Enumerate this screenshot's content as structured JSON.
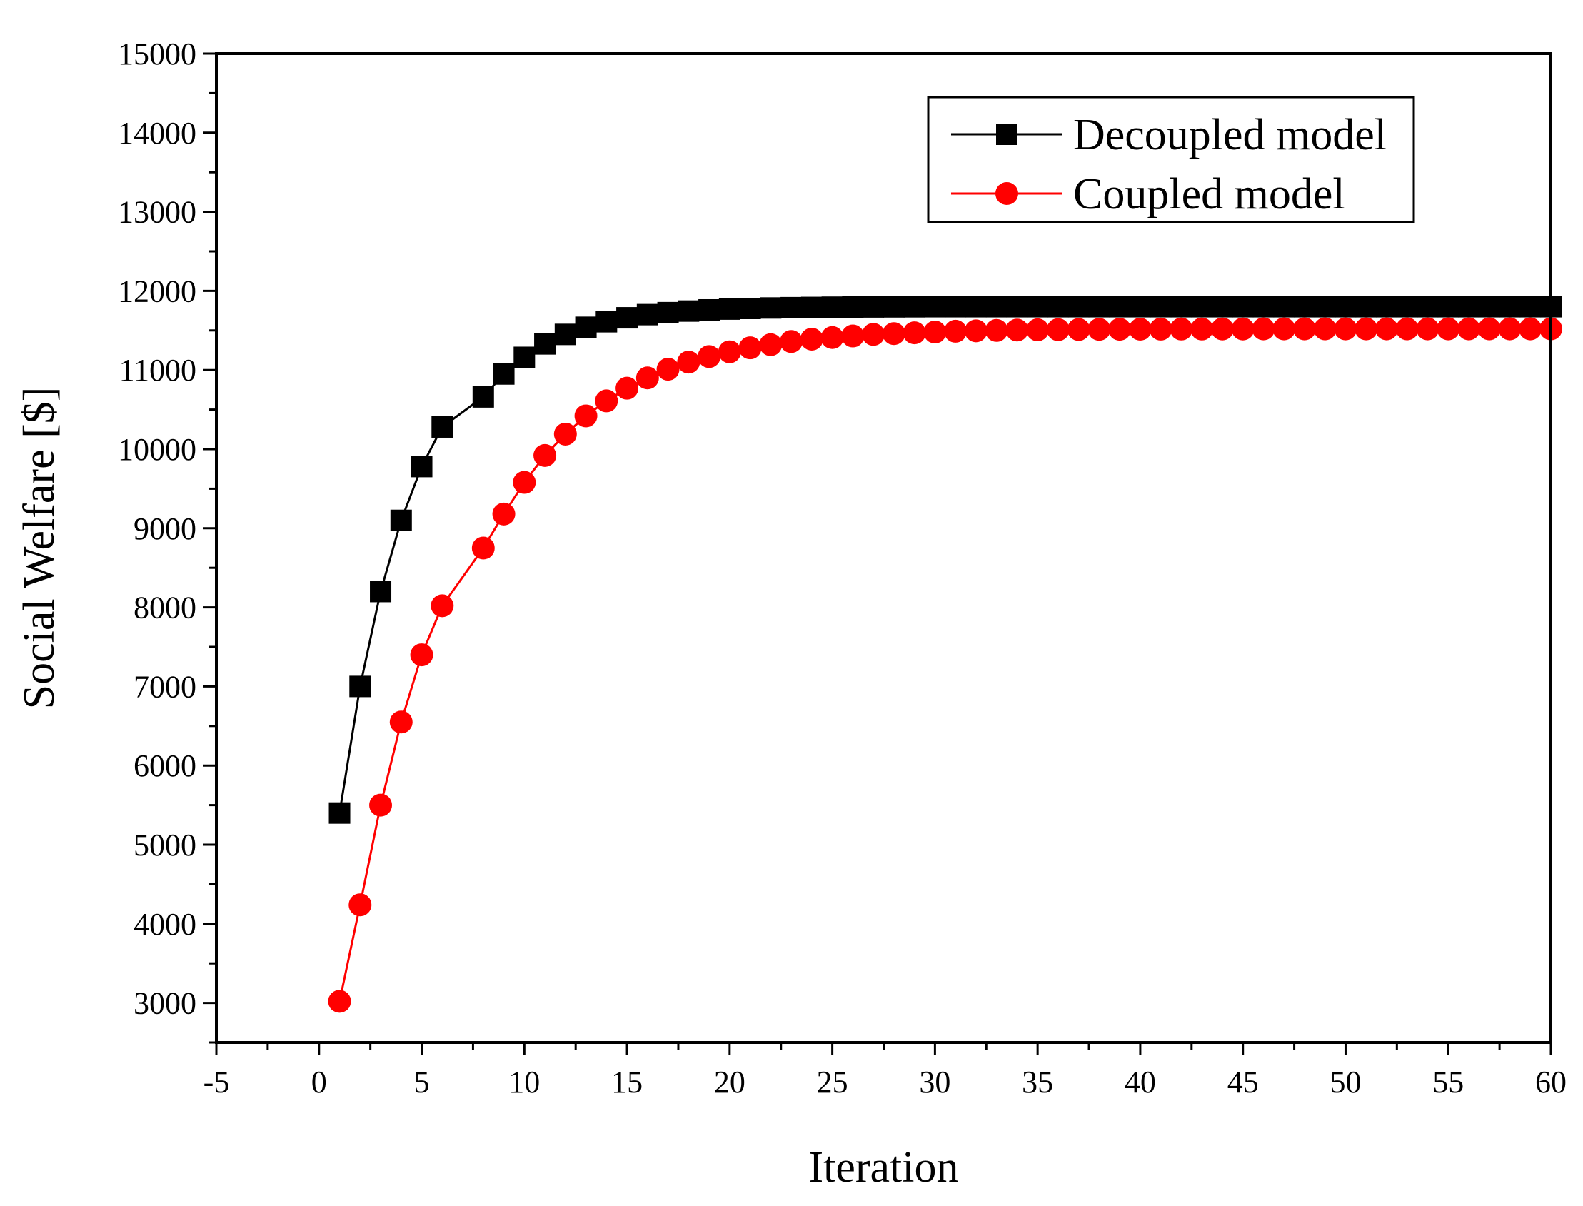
{
  "chart_data": {
    "type": "line",
    "title": "",
    "xlabel": "Iteration",
    "ylabel": "Social Welfare [$]",
    "xlim": [
      -5,
      60
    ],
    "ylim": [
      2500,
      15000
    ],
    "xticks": [
      -5,
      0,
      5,
      10,
      15,
      20,
      25,
      30,
      35,
      40,
      45,
      50,
      55,
      60
    ],
    "yticks": [
      3000,
      4000,
      5000,
      6000,
      7000,
      8000,
      9000,
      10000,
      11000,
      12000,
      13000,
      14000,
      15000
    ],
    "legend_position": "top-right",
    "series": [
      {
        "name": "Decoupled model",
        "color": "#000000",
        "marker": "square",
        "x": [
          1,
          2,
          3,
          4,
          5,
          6,
          8,
          9,
          10,
          11,
          12,
          13,
          14,
          15,
          16,
          17,
          18,
          19,
          20,
          21,
          22,
          23,
          24,
          25,
          26,
          27,
          28,
          29,
          30,
          31,
          32,
          33,
          34,
          35,
          36,
          37,
          38,
          39,
          40,
          41,
          42,
          43,
          44,
          45,
          46,
          47,
          48,
          49,
          50,
          51,
          52,
          53,
          54,
          55,
          56,
          57,
          58,
          59,
          60
        ],
        "y": [
          5400,
          7000,
          8200,
          9100,
          9780,
          10280,
          10660,
          10950,
          11160,
          11330,
          11450,
          11540,
          11610,
          11660,
          11700,
          11725,
          11745,
          11760,
          11770,
          11778,
          11784,
          11788,
          11791,
          11794,
          11796,
          11797,
          11798,
          11799,
          11800,
          11800,
          11800,
          11800,
          11800,
          11800,
          11800,
          11800,
          11800,
          11800,
          11800,
          11800,
          11800,
          11800,
          11800,
          11800,
          11800,
          11800,
          11800,
          11800,
          11800,
          11800,
          11800,
          11800,
          11800,
          11800,
          11800,
          11800,
          11800,
          11800,
          11800
        ]
      },
      {
        "name": "Coupled model",
        "color": "#ff0000",
        "marker": "circle",
        "x": [
          1,
          2,
          3,
          4,
          5,
          6,
          8,
          9,
          10,
          11,
          12,
          13,
          14,
          15,
          16,
          17,
          18,
          19,
          20,
          21,
          22,
          23,
          24,
          25,
          26,
          27,
          28,
          29,
          30,
          31,
          32,
          33,
          34,
          35,
          36,
          37,
          38,
          39,
          40,
          41,
          42,
          43,
          44,
          45,
          46,
          47,
          48,
          49,
          50,
          51,
          52,
          53,
          54,
          55,
          56,
          57,
          58,
          59,
          60
        ],
        "y": [
          3020,
          4240,
          5500,
          6550,
          7400,
          8020,
          8750,
          9180,
          9580,
          9920,
          10190,
          10420,
          10610,
          10770,
          10900,
          11010,
          11100,
          11170,
          11230,
          11280,
          11320,
          11360,
          11390,
          11410,
          11430,
          11450,
          11460,
          11470,
          11480,
          11490,
          11495,
          11500,
          11505,
          11508,
          11510,
          11512,
          11514,
          11515,
          11516,
          11517,
          11518,
          11518,
          11519,
          11519,
          11520,
          11520,
          11520,
          11520,
          11520,
          11520,
          11520,
          11520,
          11520,
          11520,
          11520,
          11520,
          11520,
          11520,
          11520
        ]
      }
    ]
  }
}
